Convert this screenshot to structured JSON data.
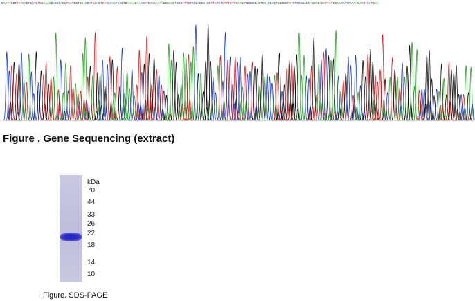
{
  "sequence": "GAATTCGTTATCAGTGCTGTGGAAACGAGCCAGCTCATGGTGGACCATGCAGTCTACAACACCGTGAAAAGAAACCTCAAGAAAAGGGAAGTGCCTTTCTCCGAGCCAGCTTCTCTCTTTCTTTAAGCTGCCCGAGTCCACCAGTGGGGCTATCTCCCGAGCAGCAGAGATTATGGAAACATCAATACAAGTCATGAA",
  "gene_caption": "Figure . Gene Sequencing (extract)",
  "gel": {
    "unit": "kDa",
    "markers": [
      "70",
      "44",
      "33",
      "26",
      "22",
      "18",
      "14",
      "10"
    ]
  },
  "gel_caption": "Figure. SDS-PAGE"
}
